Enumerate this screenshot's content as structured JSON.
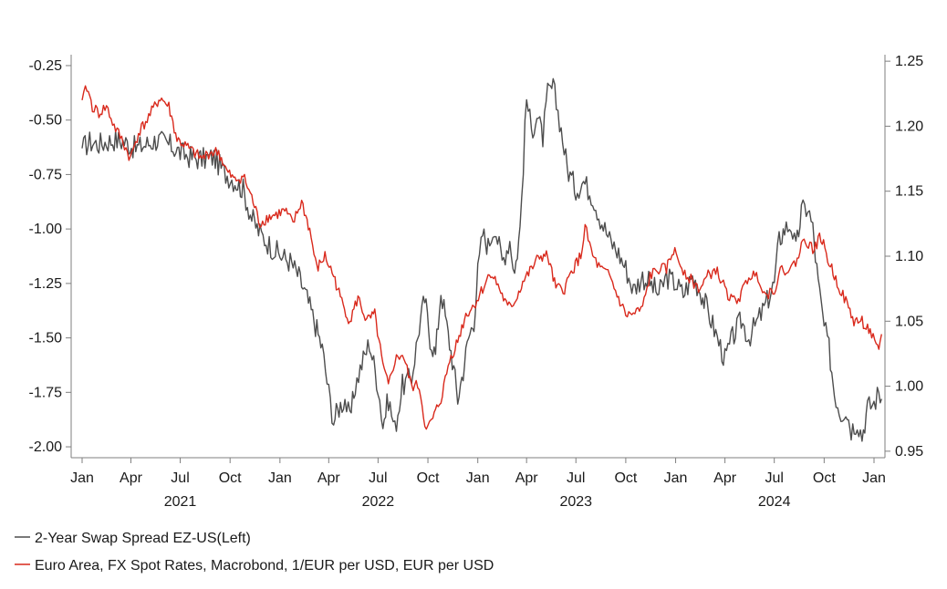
{
  "chart_data": {
    "type": "line",
    "title": "",
    "xlabel": "",
    "ylabel": "",
    "x_range": [
      "2021-01-01",
      "2025-01-20"
    ],
    "ylim_left": [
      -2.05,
      -0.2
    ],
    "ylim_right": [
      0.945,
      1.255
    ],
    "y_ticks_left": [
      "-0.25",
      "-0.50",
      "-0.75",
      "-1.00",
      "-1.25",
      "-1.50",
      "-1.75",
      "-2.00"
    ],
    "y_ticks_right": [
      "1.25",
      "1.20",
      "1.15",
      "1.10",
      "1.05",
      "1.00",
      "0.95"
    ],
    "x_ticks": [
      {
        "date": "2021-01-01",
        "label": "Jan"
      },
      {
        "date": "2021-04-01",
        "label": "Apr"
      },
      {
        "date": "2021-07-01",
        "label": "Jul"
      },
      {
        "date": "2021-10-01",
        "label": "Oct"
      },
      {
        "date": "2022-01-01",
        "label": "Jan"
      },
      {
        "date": "2022-04-01",
        "label": "Apr"
      },
      {
        "date": "2022-07-01",
        "label": "Jul"
      },
      {
        "date": "2022-10-01",
        "label": "Oct"
      },
      {
        "date": "2023-01-01",
        "label": "Jan"
      },
      {
        "date": "2023-04-01",
        "label": "Apr"
      },
      {
        "date": "2023-07-01",
        "label": "Jul"
      },
      {
        "date": "2023-10-01",
        "label": "Oct"
      },
      {
        "date": "2024-01-01",
        "label": "Jan"
      },
      {
        "date": "2024-04-01",
        "label": "Apr"
      },
      {
        "date": "2024-07-01",
        "label": "Jul"
      },
      {
        "date": "2024-10-01",
        "label": "Oct"
      },
      {
        "date": "2025-01-01",
        "label": "Jan"
      }
    ],
    "year_labels": [
      {
        "date": "2021-07-01",
        "label": "2021"
      },
      {
        "date": "2022-07-01",
        "label": "2022"
      },
      {
        "date": "2023-07-01",
        "label": "2023"
      },
      {
        "date": "2024-07-01",
        "label": "2024"
      }
    ],
    "grid": false,
    "legend_position": "bottom-left",
    "series": [
      {
        "name": "2-Year Swap Spread EZ-US(Left)",
        "axis": "left",
        "color": "#4d4d4d",
        "points": [
          [
            "2021-01-01",
            -0.63
          ],
          [
            "2021-01-15",
            -0.6
          ],
          [
            "2021-02-01",
            -0.61
          ],
          [
            "2021-03-01",
            -0.59
          ],
          [
            "2021-03-20",
            -0.6
          ],
          [
            "2021-04-10",
            -0.63
          ],
          [
            "2021-05-01",
            -0.61
          ],
          [
            "2021-05-20",
            -0.59
          ],
          [
            "2021-06-15",
            -0.62
          ],
          [
            "2021-07-01",
            -0.65
          ],
          [
            "2021-07-20",
            -0.67
          ],
          [
            "2021-08-10",
            -0.68
          ],
          [
            "2021-09-01",
            -0.67
          ],
          [
            "2021-09-20",
            -0.74
          ],
          [
            "2021-10-10",
            -0.78
          ],
          [
            "2021-10-25",
            -0.82
          ],
          [
            "2021-11-10",
            -0.95
          ],
          [
            "2021-11-25",
            -1.02
          ],
          [
            "2021-12-15",
            -1.08
          ],
          [
            "2022-01-01",
            -1.12
          ],
          [
            "2022-01-20",
            -1.15
          ],
          [
            "2022-02-05",
            -1.22
          ],
          [
            "2022-02-20",
            -1.32
          ],
          [
            "2022-03-05",
            -1.42
          ],
          [
            "2022-03-20",
            -1.55
          ],
          [
            "2022-04-01",
            -1.75
          ],
          [
            "2022-04-10",
            -1.88
          ],
          [
            "2022-04-20",
            -1.82
          ],
          [
            "2022-05-01",
            -1.78
          ],
          [
            "2022-05-10",
            -1.88
          ],
          [
            "2022-05-20",
            -1.72
          ],
          [
            "2022-06-01",
            -1.62
          ],
          [
            "2022-06-15",
            -1.52
          ],
          [
            "2022-07-01",
            -1.72
          ],
          [
            "2022-07-10",
            -1.9
          ],
          [
            "2022-07-20",
            -1.78
          ],
          [
            "2022-08-01",
            -1.92
          ],
          [
            "2022-08-15",
            -1.72
          ],
          [
            "2022-09-01",
            -1.68
          ],
          [
            "2022-09-15",
            -1.45
          ],
          [
            "2022-09-25",
            -1.32
          ],
          [
            "2022-10-05",
            -1.5
          ],
          [
            "2022-10-15",
            -1.58
          ],
          [
            "2022-10-25",
            -1.28
          ],
          [
            "2022-11-05",
            -1.45
          ],
          [
            "2022-11-15",
            -1.6
          ],
          [
            "2022-11-25",
            -1.78
          ],
          [
            "2022-12-05",
            -1.65
          ],
          [
            "2022-12-15",
            -1.5
          ],
          [
            "2022-12-25",
            -1.42
          ],
          [
            "2023-01-01",
            -1.2
          ],
          [
            "2023-01-10",
            -1.02
          ],
          [
            "2023-01-20",
            -1.08
          ],
          [
            "2023-02-01",
            -0.98
          ],
          [
            "2023-02-15",
            -1.15
          ],
          [
            "2023-03-01",
            -1.05
          ],
          [
            "2023-03-10",
            -1.2
          ],
          [
            "2023-03-20",
            -1.0
          ],
          [
            "2023-04-01",
            -0.4
          ],
          [
            "2023-04-10",
            -0.55
          ],
          [
            "2023-04-20",
            -0.48
          ],
          [
            "2023-05-01",
            -0.58
          ],
          [
            "2023-05-10",
            -0.38
          ],
          [
            "2023-05-20",
            -0.35
          ],
          [
            "2023-06-01",
            -0.5
          ],
          [
            "2023-06-15",
            -0.72
          ],
          [
            "2023-07-01",
            -0.82
          ],
          [
            "2023-07-15",
            -0.78
          ],
          [
            "2023-08-01",
            -0.85
          ],
          [
            "2023-08-15",
            -0.95
          ],
          [
            "2023-09-01",
            -1.05
          ],
          [
            "2023-09-15",
            -1.1
          ],
          [
            "2023-10-01",
            -1.18
          ],
          [
            "2023-10-15",
            -1.28
          ],
          [
            "2023-11-01",
            -1.22
          ],
          [
            "2023-11-15",
            -1.25
          ],
          [
            "2023-12-01",
            -1.3
          ],
          [
            "2023-12-15",
            -1.22
          ],
          [
            "2024-01-01",
            -1.25
          ],
          [
            "2024-01-15",
            -1.3
          ],
          [
            "2024-02-01",
            -1.22
          ],
          [
            "2024-02-15",
            -1.28
          ],
          [
            "2024-03-01",
            -1.38
          ],
          [
            "2024-03-15",
            -1.48
          ],
          [
            "2024-04-01",
            -1.6
          ],
          [
            "2024-04-15",
            -1.5
          ],
          [
            "2024-05-01",
            -1.42
          ],
          [
            "2024-05-15",
            -1.5
          ],
          [
            "2024-06-01",
            -1.42
          ],
          [
            "2024-06-15",
            -1.35
          ],
          [
            "2024-07-01",
            -1.25
          ],
          [
            "2024-07-10",
            -1.05
          ],
          [
            "2024-07-20",
            -1.0
          ],
          [
            "2024-08-01",
            -0.98
          ],
          [
            "2024-08-10",
            -1.1
          ],
          [
            "2024-08-20",
            -0.92
          ],
          [
            "2024-09-01",
            -0.9
          ],
          [
            "2024-09-10",
            -1.0
          ],
          [
            "2024-09-20",
            -1.25
          ],
          [
            "2024-10-01",
            -1.45
          ],
          [
            "2024-10-10",
            -1.55
          ],
          [
            "2024-10-20",
            -1.75
          ],
          [
            "2024-11-01",
            -1.85
          ],
          [
            "2024-11-10",
            -1.82
          ],
          [
            "2024-11-20",
            -1.92
          ],
          [
            "2024-12-01",
            -1.88
          ],
          [
            "2024-12-10",
            -1.95
          ],
          [
            "2024-12-20",
            -1.82
          ],
          [
            "2025-01-01",
            -1.8
          ],
          [
            "2025-01-10",
            -1.75
          ],
          [
            "2025-01-15",
            -1.78
          ]
        ]
      },
      {
        "name": "Euro Area, FX Spot Rates, Macrobond, 1/EUR per USD, EUR per USD",
        "axis": "right",
        "color": "#d9291c",
        "points": [
          [
            "2021-01-01",
            1.22
          ],
          [
            "2021-01-10",
            1.23
          ],
          [
            "2021-01-20",
            1.215
          ],
          [
            "2021-02-01",
            1.21
          ],
          [
            "2021-02-15",
            1.215
          ],
          [
            "2021-03-01",
            1.2
          ],
          [
            "2021-03-15",
            1.19
          ],
          [
            "2021-03-31",
            1.175
          ],
          [
            "2021-04-15",
            1.195
          ],
          [
            "2021-05-01",
            1.205
          ],
          [
            "2021-05-15",
            1.215
          ],
          [
            "2021-05-25",
            1.222
          ],
          [
            "2021-06-10",
            1.215
          ],
          [
            "2021-06-25",
            1.19
          ],
          [
            "2021-07-10",
            1.185
          ],
          [
            "2021-07-25",
            1.18
          ],
          [
            "2021-08-10",
            1.175
          ],
          [
            "2021-08-25",
            1.18
          ],
          [
            "2021-09-10",
            1.18
          ],
          [
            "2021-09-25",
            1.165
          ],
          [
            "2021-10-10",
            1.158
          ],
          [
            "2021-10-25",
            1.162
          ],
          [
            "2021-11-10",
            1.145
          ],
          [
            "2021-11-25",
            1.125
          ],
          [
            "2021-12-10",
            1.13
          ],
          [
            "2021-12-25",
            1.132
          ],
          [
            "2022-01-10",
            1.135
          ],
          [
            "2022-01-25",
            1.125
          ],
          [
            "2022-02-10",
            1.142
          ],
          [
            "2022-02-25",
            1.12
          ],
          [
            "2022-03-10",
            1.09
          ],
          [
            "2022-03-25",
            1.1
          ],
          [
            "2022-04-10",
            1.085
          ],
          [
            "2022-04-25",
            1.065
          ],
          [
            "2022-05-10",
            1.05
          ],
          [
            "2022-05-25",
            1.068
          ],
          [
            "2022-06-10",
            1.05
          ],
          [
            "2022-06-25",
            1.055
          ],
          [
            "2022-07-10",
            1.015
          ],
          [
            "2022-07-20",
            1.0
          ],
          [
            "2022-08-01",
            1.02
          ],
          [
            "2022-08-15",
            1.025
          ],
          [
            "2022-09-01",
            1.0
          ],
          [
            "2022-09-15",
            1.0
          ],
          [
            "2022-09-28",
            0.965
          ],
          [
            "2022-10-10",
            0.975
          ],
          [
            "2022-10-25",
            0.99
          ],
          [
            "2022-11-10",
            1.02
          ],
          [
            "2022-11-25",
            1.035
          ],
          [
            "2022-12-10",
            1.055
          ],
          [
            "2022-12-25",
            1.062
          ],
          [
            "2023-01-10",
            1.075
          ],
          [
            "2023-01-25",
            1.088
          ],
          [
            "2023-02-10",
            1.075
          ],
          [
            "2023-02-25",
            1.06
          ],
          [
            "2023-03-10",
            1.065
          ],
          [
            "2023-03-25",
            1.08
          ],
          [
            "2023-04-10",
            1.09
          ],
          [
            "2023-04-25",
            1.1
          ],
          [
            "2023-05-10",
            1.1
          ],
          [
            "2023-05-25",
            1.075
          ],
          [
            "2023-06-10",
            1.075
          ],
          [
            "2023-06-25",
            1.09
          ],
          [
            "2023-07-10",
            1.1
          ],
          [
            "2023-07-18",
            1.122
          ],
          [
            "2023-08-01",
            1.1
          ],
          [
            "2023-08-15",
            1.09
          ],
          [
            "2023-09-01",
            1.085
          ],
          [
            "2023-09-15",
            1.07
          ],
          [
            "2023-10-01",
            1.055
          ],
          [
            "2023-10-15",
            1.055
          ],
          [
            "2023-11-01",
            1.06
          ],
          [
            "2023-11-15",
            1.085
          ],
          [
            "2023-12-01",
            1.09
          ],
          [
            "2023-12-15",
            1.09
          ],
          [
            "2023-12-28",
            1.105
          ],
          [
            "2024-01-15",
            1.09
          ],
          [
            "2024-02-01",
            1.08
          ],
          [
            "2024-02-15",
            1.075
          ],
          [
            "2024-03-01",
            1.085
          ],
          [
            "2024-03-15",
            1.09
          ],
          [
            "2024-04-01",
            1.075
          ],
          [
            "2024-04-15",
            1.065
          ],
          [
            "2024-05-01",
            1.07
          ],
          [
            "2024-05-15",
            1.085
          ],
          [
            "2024-06-01",
            1.085
          ],
          [
            "2024-06-15",
            1.07
          ],
          [
            "2024-07-01",
            1.075
          ],
          [
            "2024-07-15",
            1.09
          ],
          [
            "2024-08-01",
            1.09
          ],
          [
            "2024-08-15",
            1.1
          ],
          [
            "2024-08-25",
            1.115
          ],
          [
            "2024-09-10",
            1.105
          ],
          [
            "2024-09-25",
            1.115
          ],
          [
            "2024-10-10",
            1.095
          ],
          [
            "2024-10-25",
            1.08
          ],
          [
            "2024-11-10",
            1.065
          ],
          [
            "2024-11-25",
            1.05
          ],
          [
            "2024-12-10",
            1.05
          ],
          [
            "2024-12-25",
            1.042
          ],
          [
            "2025-01-05",
            1.03
          ],
          [
            "2025-01-10",
            1.025
          ],
          [
            "2025-01-15",
            1.04
          ]
        ]
      }
    ]
  }
}
